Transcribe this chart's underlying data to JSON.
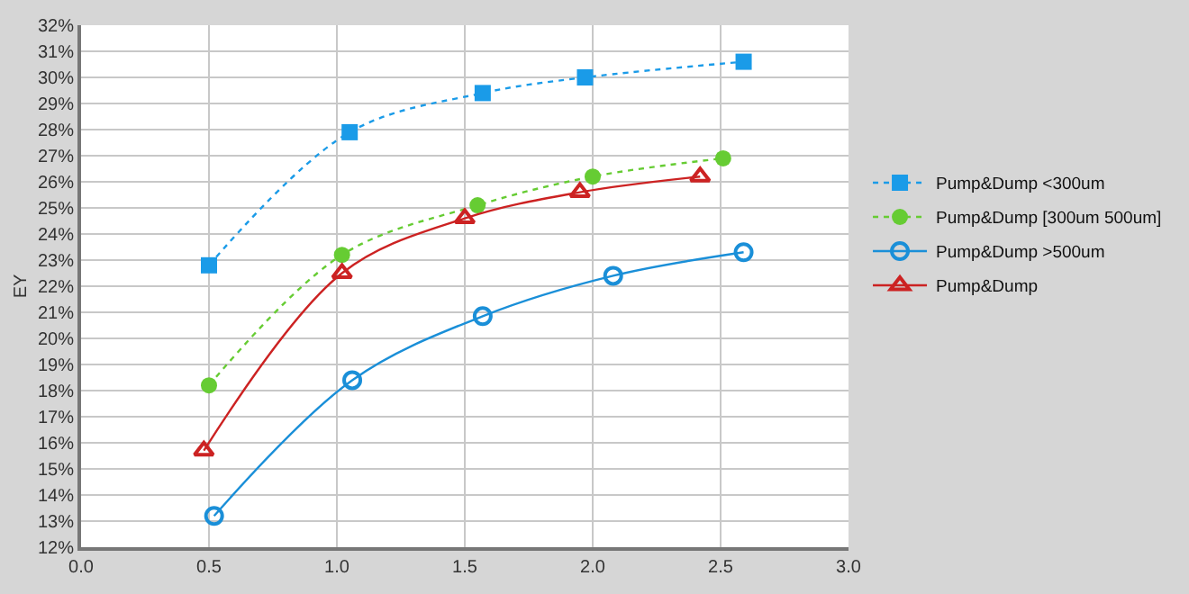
{
  "chart_data": {
    "type": "line",
    "ylabel": "EY",
    "xlim": [
      0,
      3
    ],
    "ylim": [
      12,
      32
    ],
    "xticks": [
      {
        "value": 0,
        "label": "0.0"
      },
      {
        "value": 0.5,
        "label": "0.5"
      },
      {
        "value": 1,
        "label": "1.0"
      },
      {
        "value": 1.5,
        "label": "1.5"
      },
      {
        "value": 2,
        "label": "2.0"
      },
      {
        "value": 2.5,
        "label": "2.5"
      },
      {
        "value": 3,
        "label": "3.0"
      }
    ],
    "yticks": [
      {
        "value": 12,
        "label": "12%"
      },
      {
        "value": 13,
        "label": "13%"
      },
      {
        "value": 14,
        "label": "14%"
      },
      {
        "value": 15,
        "label": "15%"
      },
      {
        "value": 16,
        "label": "16%"
      },
      {
        "value": 17,
        "label": "17%"
      },
      {
        "value": 18,
        "label": "18%"
      },
      {
        "value": 19,
        "label": "19%"
      },
      {
        "value": 20,
        "label": "20%"
      },
      {
        "value": 21,
        "label": "21%"
      },
      {
        "value": 22,
        "label": "22%"
      },
      {
        "value": 23,
        "label": "23%"
      },
      {
        "value": 24,
        "label": "24%"
      },
      {
        "value": 25,
        "label": "25%"
      },
      {
        "value": 26,
        "label": "26%"
      },
      {
        "value": 27,
        "label": "27%"
      },
      {
        "value": 28,
        "label": "28%"
      },
      {
        "value": 29,
        "label": "29%"
      },
      {
        "value": 30,
        "label": "30%"
      },
      {
        "value": 31,
        "label": "31%"
      },
      {
        "value": 32,
        "label": "32%"
      }
    ],
    "grid": true,
    "legend": "right",
    "series": [
      {
        "name": "Pump&Dump <300um",
        "color": "#1a9be8",
        "marker": "square",
        "line_style": "dotted",
        "x": [
          0.5,
          1.05,
          1.57,
          1.97,
          2.59
        ],
        "values": [
          22.8,
          27.9,
          29.4,
          30.0,
          30.6
        ]
      },
      {
        "name": "Pump&Dump [300um 500um]",
        "color": "#66cc33",
        "marker": "circle",
        "line_style": "dotted",
        "x": [
          0.5,
          1.02,
          1.55,
          2.0,
          2.51
        ],
        "values": [
          18.2,
          23.2,
          25.1,
          26.2,
          26.9
        ]
      },
      {
        "name": "Pump&Dump >500um",
        "color": "#1a8fd8",
        "marker": "circle-open",
        "line_style": "solid",
        "x": [
          0.52,
          1.06,
          1.57,
          2.08,
          2.59
        ],
        "values": [
          13.2,
          18.4,
          20.85,
          22.4,
          23.3
        ]
      },
      {
        "name": "Pump&Dump",
        "color": "#cc2222",
        "marker": "triangle-open",
        "line_style": "solid",
        "x": [
          0.48,
          1.02,
          1.5,
          1.95,
          2.42
        ],
        "values": [
          15.7,
          22.5,
          24.6,
          25.6,
          26.2
        ]
      }
    ]
  }
}
